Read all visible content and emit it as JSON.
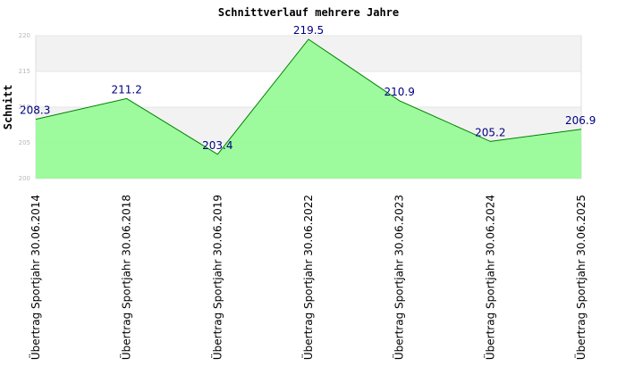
{
  "chart_data": {
    "type": "area",
    "title": "Schnittverlauf mehrere Jahre",
    "ylabel": "Schnitt",
    "xlabel": "",
    "categories": [
      "Übertrag Sportjahr 30.06.2014",
      "Übertrag Sportjahr 30.06.2018",
      "Übertrag Sportjahr 30.06.2019",
      "Übertrag Sportjahr 30.06.2022",
      "Übertrag Sportjahr 30.06.2023",
      "Übertrag Sportjahr 30.06.2024",
      "Übertrag Sportjahr 30.06.2025"
    ],
    "values": [
      208.3,
      211.2,
      203.4,
      219.5,
      210.9,
      205.2,
      206.9
    ],
    "data_labels": [
      "208.3",
      "211.2",
      "203.4",
      "219.5",
      "210.9",
      "205.2",
      "206.9"
    ],
    "ylim": [
      200,
      220
    ],
    "yticks": [
      200,
      205,
      210,
      215,
      220
    ],
    "ytick_labels": [
      "200",
      "205",
      "210",
      "215",
      "220"
    ],
    "grid": "horizontal bands",
    "colors": {
      "fill": "#98fb98",
      "line": "#008000",
      "band": "#f2f2f2",
      "label": "#000080"
    }
  }
}
